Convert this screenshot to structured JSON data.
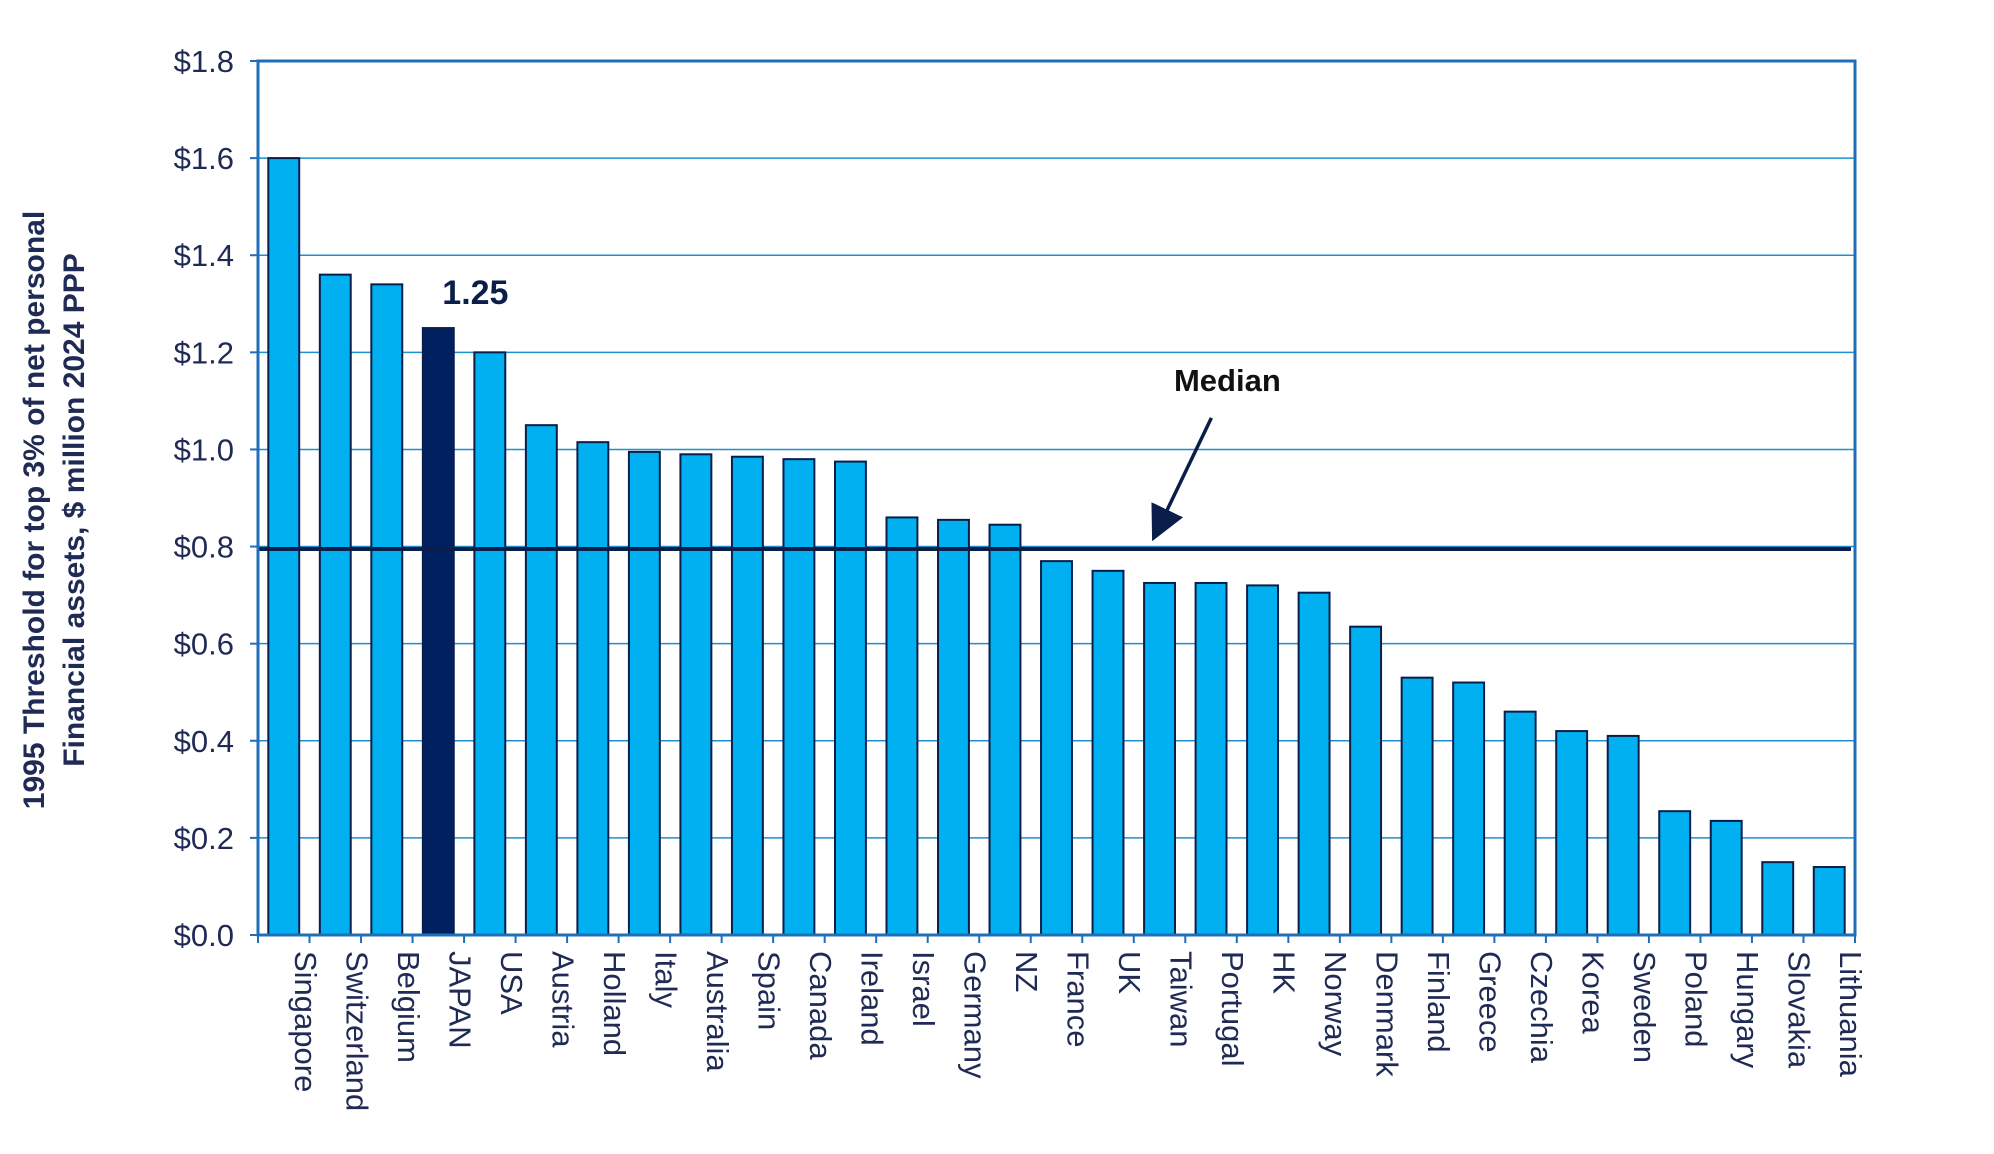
{
  "chart_data": {
    "type": "bar",
    "title": "",
    "ylabel_line1": "1995 Threshold for top 3% of net personal",
    "ylabel_line2": "Financial assets, $ million 2024 PPP",
    "xlabel": "",
    "ylim": [
      0,
      1.8
    ],
    "y_ticks": [
      0.0,
      0.2,
      0.4,
      0.6,
      0.8,
      1.0,
      1.2,
      1.4,
      1.6,
      1.8
    ],
    "y_tick_labels": [
      "$0.0",
      "$0.2",
      "$0.4",
      "$0.6",
      "$0.8",
      "$1.0",
      "$1.2",
      "$1.4",
      "$1.6",
      "$1.8"
    ],
    "grid": true,
    "categories": [
      "Singapore",
      "Switzerland",
      "Belgium",
      "JAPAN",
      "USA",
      "Austria",
      "Holland",
      "Italy",
      "Australia",
      "Spain",
      "Canada",
      "Ireland",
      "Israel",
      "Germany",
      "NZ",
      "France",
      "UK",
      "Taiwan",
      "Portugal",
      "HK",
      "Norway",
      "Denmark",
      "Finland",
      "Greece",
      "Czechia",
      "Korea",
      "Sweden",
      "Poland",
      "Hungary",
      "Slovakia",
      "Lithuania"
    ],
    "values": [
      1.6,
      1.36,
      1.34,
      1.25,
      1.2,
      1.05,
      1.015,
      0.995,
      0.99,
      0.985,
      0.98,
      0.975,
      0.86,
      0.855,
      0.845,
      0.77,
      0.75,
      0.725,
      0.725,
      0.72,
      0.705,
      0.635,
      0.53,
      0.52,
      0.46,
      0.42,
      0.41,
      0.255,
      0.235,
      0.15,
      0.14
    ],
    "highlight_index": 3,
    "highlight_label": "1.25",
    "median_value": 0.795,
    "median_label": "Median",
    "colors": {
      "bar": "#00B0F0",
      "highlight_bar": "#002060",
      "bar_outline": "#0A1E4A",
      "frame": "#1F6FB8",
      "gridline": "#1F8FD0",
      "median_line": "#0A1E4A",
      "text": "#1F2A55",
      "label_dark": "#0A1E4A"
    }
  }
}
